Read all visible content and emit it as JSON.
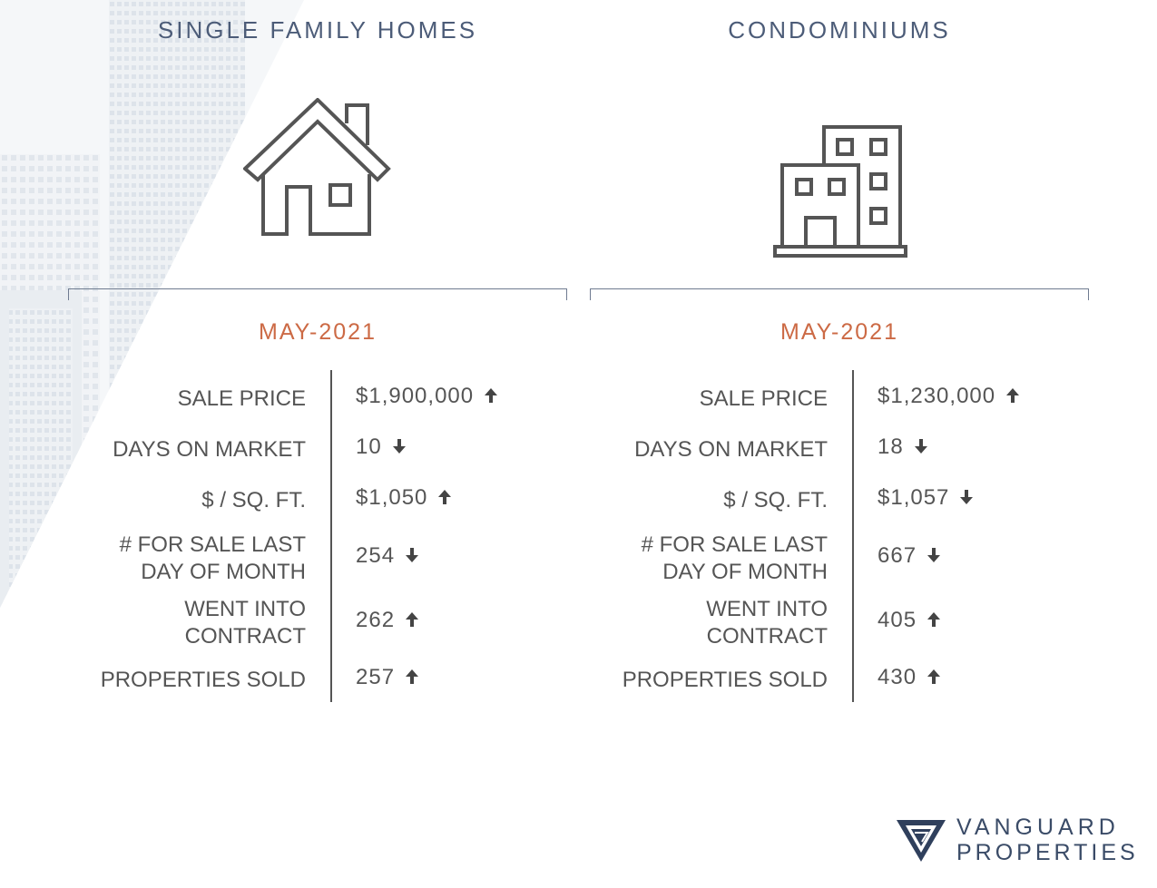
{
  "sections": [
    {
      "heading": "SINGLE FAMILY HOMES",
      "icon": "house-icon",
      "period": "MAY-2021",
      "rows": [
        {
          "label": "SALE PRICE",
          "value": "$1,900,000",
          "trend": "up"
        },
        {
          "label": "DAYS ON MARKET",
          "value": "10",
          "trend": "down"
        },
        {
          "label": "$ / SQ. FT.",
          "value": "$1,050",
          "trend": "up"
        },
        {
          "label": "# FOR SALE LAST",
          "label2": "DAY OF MONTH",
          "value": "254",
          "trend": "down"
        },
        {
          "label": "WENT INTO",
          "label2": "CONTRACT",
          "value": "262",
          "trend": "up"
        },
        {
          "label": "PROPERTIES SOLD",
          "value": "257",
          "trend": "up"
        }
      ]
    },
    {
      "heading": "CONDOMINIUMS",
      "icon": "building-icon",
      "period": "MAY-2021",
      "rows": [
        {
          "label": "SALE PRICE",
          "value": "$1,230,000",
          "trend": "up"
        },
        {
          "label": "DAYS ON MARKET",
          "value": "18",
          "trend": "down"
        },
        {
          "label": "$ / SQ. FT.",
          "value": "$1,057",
          "trend": "down"
        },
        {
          "label": "# FOR SALE LAST",
          "label2": "DAY OF MONTH",
          "value": "667",
          "trend": "down"
        },
        {
          "label": "WENT INTO",
          "label2": "CONTRACT",
          "value": "405",
          "trend": "up"
        },
        {
          "label": "PROPERTIES SOLD",
          "value": "430",
          "trend": "up"
        }
      ]
    }
  ],
  "logo": {
    "line1": "VANGUARD",
    "line2": "PROPERTIES",
    "icon": "vanguard-logo-mark"
  },
  "colors": {
    "heading": "#4c5c78",
    "period": "#cc6a45",
    "text": "#555555"
  }
}
